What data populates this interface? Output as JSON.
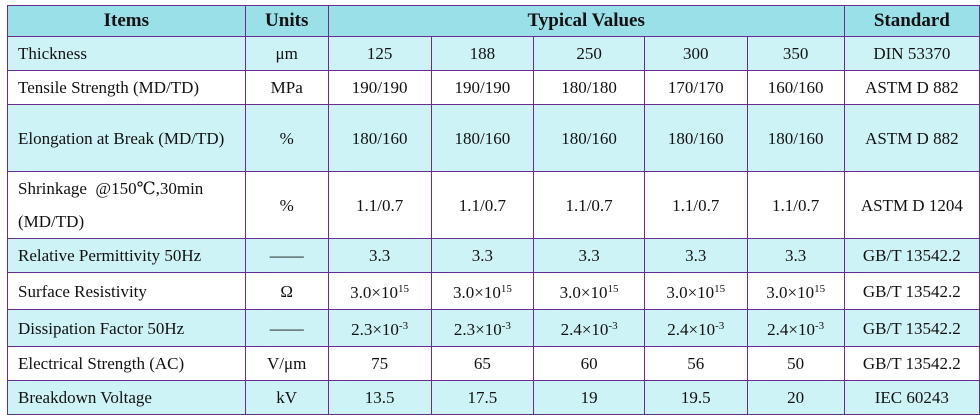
{
  "header": {
    "items": "Items",
    "units": "Units",
    "typical": "Typical Values",
    "standard": "Standard"
  },
  "rows": [
    {
      "item": "Thickness",
      "unit": "μm",
      "vals": [
        "125",
        "188",
        "250",
        "300",
        "350"
      ],
      "std": "DIN 53370"
    },
    {
      "item": "Tensile Strength (MD/TD)",
      "unit": "MPa",
      "vals": [
        "190/190",
        "190/190",
        "180/180",
        "170/170",
        "160/160"
      ],
      "std": "ASTM D 882"
    },
    {
      "item": "Elongation at Break (MD/TD)",
      "unit": "%",
      "vals": [
        "180/160",
        "180/160",
        "180/160",
        "180/160",
        "180/160"
      ],
      "std": "ASTM D 882"
    },
    {
      "item": "Shrinkage  @150℃,30min (MD/TD)",
      "unit": "%",
      "vals": [
        "1.1/0.7",
        "1.1/0.7",
        "1.1/0.7",
        "1.1/0.7",
        "1.1/0.7"
      ],
      "std": "ASTM D 1204"
    },
    {
      "item": "Relative Permittivity 50Hz",
      "unit": "——",
      "vals": [
        "3.3",
        "3.3",
        "3.3",
        "3.3",
        "3.3"
      ],
      "std": "GB/T 13542.2"
    },
    {
      "item": "Surface Resistivity",
      "unit": "Ω",
      "vals": [
        {
          "base": "3.0×10",
          "exp": "15"
        },
        {
          "base": "3.0×10",
          "exp": "15"
        },
        {
          "base": "3.0×10",
          "exp": "15"
        },
        {
          "base": "3.0×10",
          "exp": "15"
        },
        {
          "base": "3.0×10",
          "exp": "15"
        }
      ],
      "std": "GB/T 13542.2"
    },
    {
      "item": "Dissipation Factor 50Hz",
      "unit": "——",
      "vals": [
        {
          "base": "2.3×10",
          "exp": "-3"
        },
        {
          "base": "2.3×10",
          "exp": "-3"
        },
        {
          "base": "2.4×10",
          "exp": "-3"
        },
        {
          "base": "2.4×10",
          "exp": "-3"
        },
        {
          "base": "2.4×10",
          "exp": "-3"
        }
      ],
      "std": "GB/T 13542.2"
    },
    {
      "item": "Electrical Strength (AC)",
      "unit": "V/μm",
      "vals": [
        "75",
        "65",
        "60",
        "56",
        "50"
      ],
      "std": "GB/T 13542.2"
    },
    {
      "item": "Breakdown Voltage",
      "unit": "kV",
      "vals": [
        "13.5",
        "17.5",
        "19",
        "19.5",
        "20"
      ],
      "std": "IEC 60243"
    }
  ]
}
